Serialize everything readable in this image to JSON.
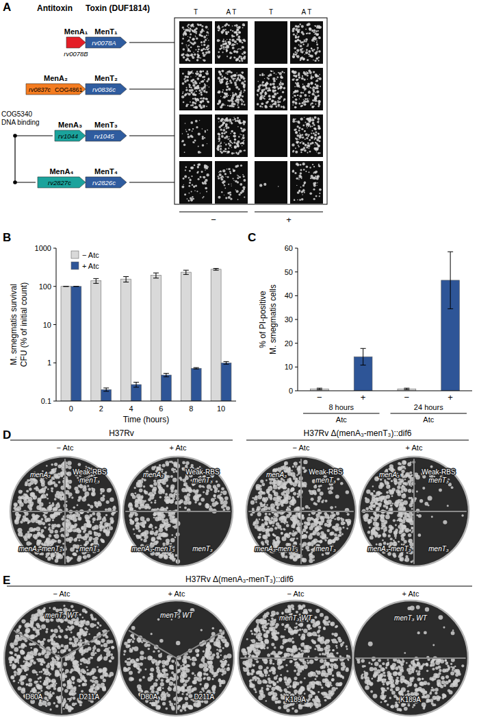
{
  "panel_labels": [
    "A",
    "B",
    "C",
    "D",
    "E"
  ],
  "panel_a": {
    "headers": [
      "Antitoxin",
      "Toxin (DUF1814)"
    ],
    "systems": [
      {
        "antitoxin": {
          "name": "MenA₁",
          "gene": "rv0078B",
          "color": "#e41e26"
        },
        "toxin": {
          "name": "MenT₁",
          "gene": "rv0078A",
          "color": "#2f5c9f"
        }
      },
      {
        "antitoxin": {
          "name": "MenA₂",
          "gene": "rv0837c",
          "domain": "COG4861",
          "color": "#f47c20"
        },
        "toxin": {
          "name": "MenT₂",
          "gene": "rv0836c",
          "color": "#2f5c9f"
        }
      },
      {
        "antitoxin": {
          "name": "MenA₃",
          "gene": "rv1044",
          "color": "#1ba39c"
        },
        "toxin": {
          "name": "MenT₃",
          "gene": "rv1045",
          "color": "#2f5c9f"
        }
      },
      {
        "antitoxin": {
          "name": "MenA₄",
          "gene": "rv2827c",
          "color": "#1ba39c"
        },
        "toxin": {
          "name": "MenT₄",
          "gene": "rv2826c",
          "color": "#2f5c9f"
        }
      }
    ],
    "bracket_label": [
      "COG5340",
      "DNA binding"
    ],
    "columns": [
      "T",
      "A T",
      "T",
      "A T"
    ],
    "conditions": [
      "−",
      "+"
    ]
  },
  "chart_data": [
    {
      "type": "bar",
      "ylabel": [
        "M. smegmatis survival",
        "CFU (% of initial count)"
      ],
      "xlabel": "Time (hours)",
      "categories": [
        0,
        2,
        4,
        6,
        8,
        10
      ],
      "series": [
        {
          "name": "− Atc",
          "color": "#d9d9d9",
          "values": [
            100,
            140,
            155,
            195,
            235,
            280
          ],
          "errors": [
            0,
            20,
            25,
            30,
            30,
            15
          ]
        },
        {
          "name": "+ Atc",
          "color": "#2e5597",
          "values": [
            100,
            0.2,
            0.27,
            0.48,
            0.72,
            1.0
          ],
          "errors": [
            0,
            0.02,
            0.04,
            0.05,
            0.03,
            0.08
          ]
        }
      ],
      "log": "y",
      "ylim": [
        0.1,
        1000
      ],
      "yticks": [
        0.1,
        1,
        10,
        100,
        1000
      ],
      "grid": false,
      "legend": "top-left"
    },
    {
      "type": "bar",
      "ylabel": [
        "% of PI-positive",
        "M. smegmatis cells"
      ],
      "categories": [
        "−",
        "+",
        "−",
        "+"
      ],
      "values": [
        0.8,
        14.3,
        0.8,
        46.5
      ],
      "errors": [
        0.3,
        3.5,
        0.3,
        12
      ],
      "colors": [
        "#d9d9d9",
        "#2e5597",
        "#d9d9d9",
        "#2e5597"
      ],
      "groups": [
        {
          "label": "8 hours",
          "condition": "Atc"
        },
        {
          "label": "24 hours",
          "condition": "Atc"
        }
      ],
      "ylim": [
        0,
        60
      ],
      "yticks": [
        0,
        10,
        20,
        30,
        40,
        50,
        60
      ],
      "grid": false
    }
  ],
  "panel_d": {
    "groups": [
      {
        "title": "H37Rv",
        "plates": [
          {
            "condition": "− Atc",
            "sector_labels": [
              [
                "menA₃"
              ],
              [
                "Weak-RBS",
                "menT₃"
              ],
              [
                "menA₃-menT₃"
              ],
              [
                "menT₃"
              ]
            ]
          },
          {
            "condition": "+ Atc",
            "sector_labels": [
              [
                "menA₃"
              ],
              [
                "Weak-RBS",
                "menT₃"
              ],
              [
                "menA₃-menT₃"
              ],
              [
                "menT₃"
              ]
            ]
          }
        ]
      },
      {
        "title": "H37Rv Δ(menA₃-menT₃)::dif6",
        "plates": [
          {
            "condition": "− Atc",
            "sector_labels": [
              [
                "menA₃"
              ],
              [
                "Weak-RBS",
                "menT₃"
              ],
              [
                "menA₃-menT₃"
              ],
              [
                "menT₃"
              ]
            ]
          },
          {
            "condition": "+ Atc",
            "sector_labels": [
              [
                "menA₃"
              ],
              [
                "Weak-RBS",
                "menT₃"
              ],
              [
                "menA₃-menT₃"
              ],
              [
                "menT₃"
              ]
            ]
          }
        ]
      }
    ]
  },
  "panel_e": {
    "title": "H37Rv Δ(menA₃-menT₃)::dif6",
    "plates": [
      {
        "condition": "− Atc",
        "sector_labels": [
          "menT₃ WT",
          "D80A",
          "D211A"
        ]
      },
      {
        "condition": "+ Atc",
        "sector_labels": [
          "menT₃ WT",
          "D80A",
          "D211A"
        ]
      },
      {
        "condition": "− Atc",
        "sector_labels": [
          "menT₃ WT",
          "K189A"
        ]
      },
      {
        "condition": "+ Atc",
        "sector_labels": [
          "menT₃ WT",
          "K189A"
        ]
      }
    ]
  }
}
